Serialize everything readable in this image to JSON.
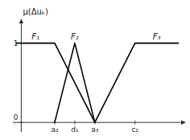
{
  "chart_data": {
    "type": "line",
    "y_label": "μ(Δuₖ)",
    "xlim": [
      -0.25,
      4.9
    ],
    "ylim": [
      -0.12,
      1.3
    ],
    "xticks": [
      {
        "value": 1.0,
        "label": "a₂"
      },
      {
        "value": 1.6,
        "label": "d₁"
      },
      {
        "value": 2.2,
        "label": "a₃"
      },
      {
        "value": 3.4,
        "label": "c₂"
      }
    ],
    "yticks": [
      0,
      1
    ],
    "series": [
      {
        "name": "F₁",
        "color": "#000000",
        "x": [
          -0.15,
          1.0,
          2.2,
          2.2
        ],
        "values": [
          1.0,
          1.0,
          0.0,
          0.0
        ]
      },
      {
        "name": "F₂",
        "color": "#000000",
        "x": [
          1.0,
          1.6,
          2.2
        ],
        "values": [
          0.0,
          1.0,
          0.0
        ]
      },
      {
        "name": "F₃",
        "color": "#000000",
        "x": [
          2.2,
          3.4,
          4.7
        ],
        "values": [
          0.0,
          1.0,
          1.0
        ]
      }
    ]
  }
}
